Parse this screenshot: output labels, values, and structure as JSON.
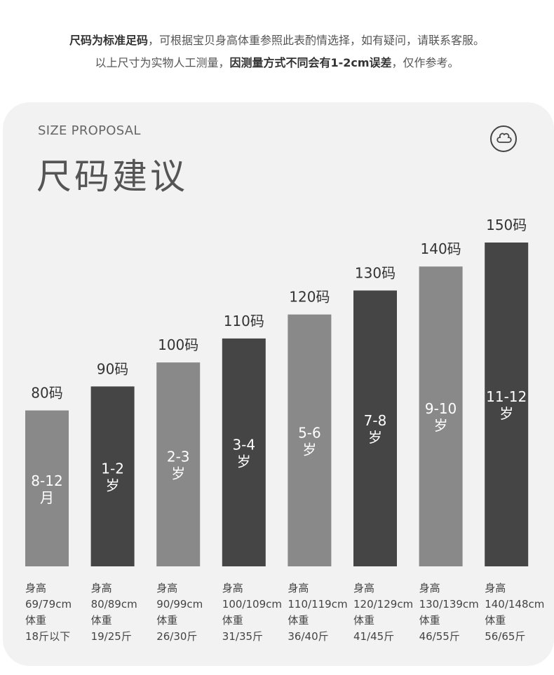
{
  "notes": {
    "line1_bold": "尺码为标准足码",
    "line1_rest": "，可根据宝贝身高体重参照此表酌情选择，如有疑问，请联系客服。",
    "line2_pre": "以上尺寸为实物人工测量，",
    "line2_bold": "因测量方式不同会有1-2cm误差",
    "line2_post": "，仅作参考。"
  },
  "header": {
    "subtitle": "SIZE PROPOSAL",
    "title": "尺码建议",
    "logo_icon": "cloud-clover-icon"
  },
  "colors": {
    "light_bar": "#898989",
    "dark_bar": "#454545",
    "card_bg": "#f2f2f2"
  },
  "chart_data": {
    "type": "bar",
    "categories": [
      "80码",
      "90码",
      "100码",
      "110码",
      "120码",
      "130码",
      "140码",
      "150码"
    ],
    "values": [
      80,
      90,
      100,
      110,
      120,
      130,
      140,
      150
    ],
    "ylim": [
      15,
      150
    ],
    "bar_labels": [
      [
        "8-12",
        "月"
      ],
      [
        "1-2",
        "岁"
      ],
      [
        "2-3",
        "岁"
      ],
      [
        "3-4",
        "岁"
      ],
      [
        "5-6",
        "岁"
      ],
      [
        "7-8",
        "岁"
      ],
      [
        "9-10",
        "岁"
      ],
      [
        "11-12",
        "岁"
      ]
    ],
    "bar_shades": [
      "light",
      "dark",
      "light",
      "dark",
      "light",
      "dark",
      "light",
      "dark"
    ]
  },
  "sizes": [
    {
      "height_label": "身高",
      "height": "69/79cm",
      "weight_label": "体重",
      "weight": "18斤以下"
    },
    {
      "height_label": "身高",
      "height": "80/89cm",
      "weight_label": "体重",
      "weight": "19/25斤"
    },
    {
      "height_label": "身高",
      "height": "90/99cm",
      "weight_label": "体重",
      "weight": "26/30斤"
    },
    {
      "height_label": "身高",
      "height": "100/109cm",
      "weight_label": "体重",
      "weight": "31/35斤"
    },
    {
      "height_label": "身高",
      "height": "110/119cm",
      "weight_label": "体重",
      "weight": "36/40斤"
    },
    {
      "height_label": "身高",
      "height": "120/129cm",
      "weight_label": "体重",
      "weight": "41/45斤"
    },
    {
      "height_label": "身高",
      "height": "130/139cm",
      "weight_label": "体重",
      "weight": "46/55斤"
    },
    {
      "height_label": "身高",
      "height": "140/148cm",
      "weight_label": "体重",
      "weight": "56/65斤"
    }
  ]
}
